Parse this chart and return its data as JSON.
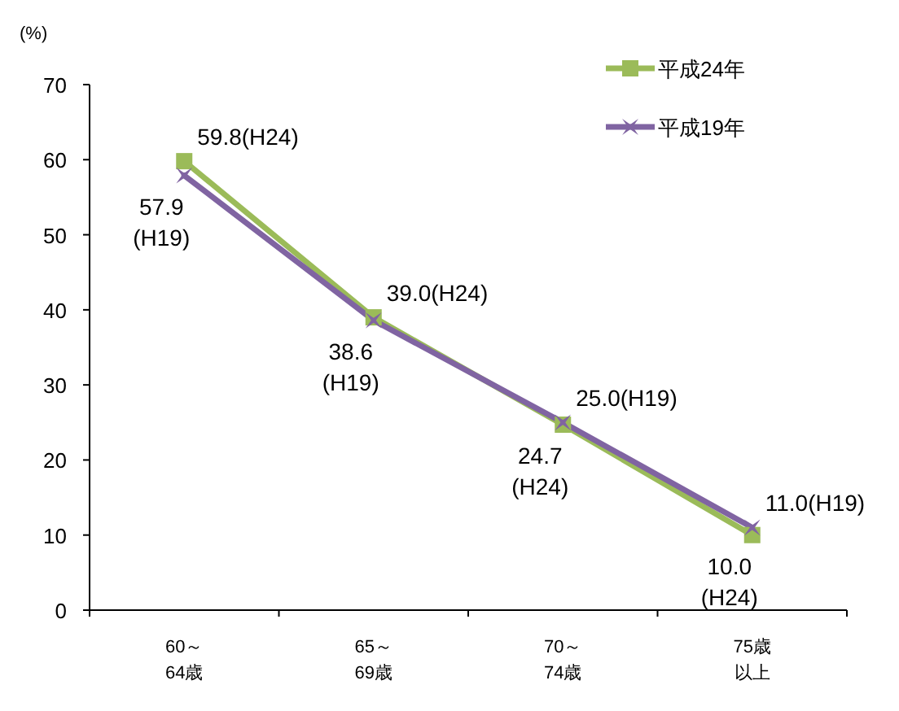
{
  "chart_data": {
    "type": "line",
    "ylabel": "(%)",
    "categories": [
      "60～64歳",
      "65～69歳",
      "70～74歳",
      "75歳以上"
    ],
    "ylim": [
      0,
      70
    ],
    "yticks": [
      0,
      10,
      20,
      30,
      40,
      50,
      60,
      70
    ],
    "grid": false,
    "legend": "top right",
    "series": [
      {
        "name": "平成24年",
        "color": "#9bbb59",
        "marker": "square",
        "values": [
          59.8,
          39.0,
          24.7,
          10.0
        ],
        "value_labels": [
          "59.8(H24)",
          "39.0(H24)",
          "24.7\n(H24)",
          "10.0\n(H24)"
        ]
      },
      {
        "name": "平成19年",
        "color": "#8064a2",
        "marker": "cross",
        "values": [
          57.9,
          38.6,
          25.0,
          11.0
        ],
        "value_labels": [
          "57.9\n(H19)",
          "38.6\n(H19)",
          "25.0(H19)",
          "11.0(H19)"
        ]
      }
    ]
  }
}
